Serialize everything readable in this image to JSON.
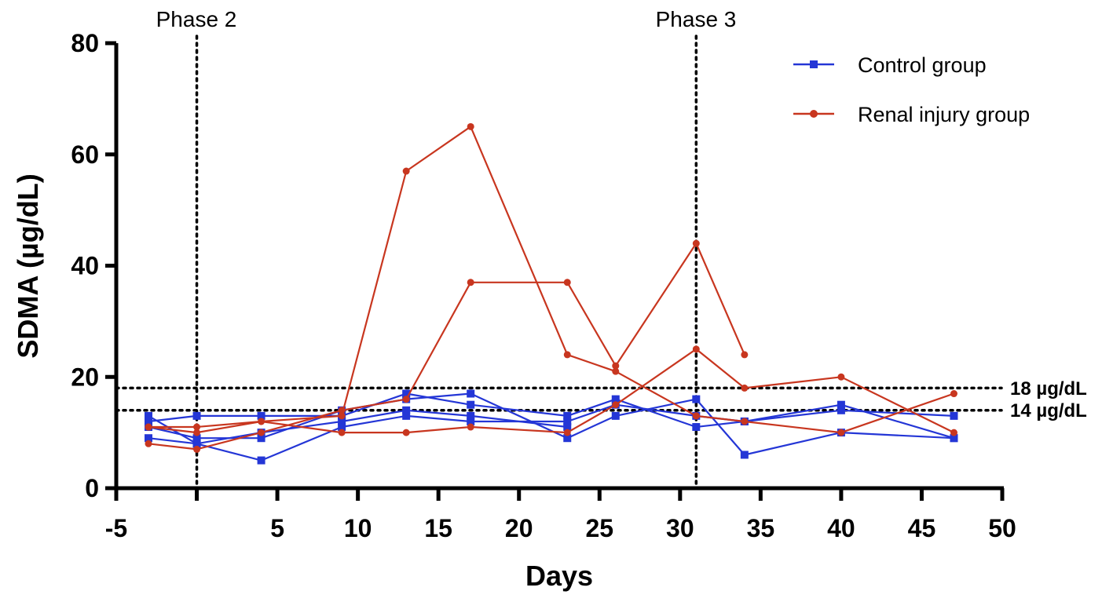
{
  "chart_data": {
    "type": "line",
    "title": "",
    "xlabel": "Days",
    "ylabel": "SDMA (µg/dL)",
    "xlim": [
      -5,
      50
    ],
    "ylim": [
      0,
      80
    ],
    "x_ticks": [
      -5,
      5,
      10,
      15,
      20,
      25,
      30,
      35,
      40,
      45,
      50
    ],
    "y_ticks": [
      0,
      20,
      40,
      60,
      80
    ],
    "vertical_markers": [
      {
        "x": 0,
        "label": "Phase 2"
      },
      {
        "x": 31,
        "label": "Phase 3"
      }
    ],
    "reference_lines": [
      {
        "y": 18,
        "label": "18 µg/dL"
      },
      {
        "y": 14,
        "label": "14 µg/dL"
      }
    ],
    "legend": {
      "position": "top-right",
      "entries": [
        {
          "name": "Control group",
          "color": "#2436d6",
          "marker": "square"
        },
        {
          "name": "Renal injury group",
          "color": "#c8361f",
          "marker": "circle"
        }
      ]
    },
    "series": [
      {
        "name": "Control group",
        "group": "Control group",
        "color": "#2436d6",
        "marker": "square",
        "x": [
          -3,
          0,
          4,
          9,
          13,
          17,
          23,
          26,
          31,
          34,
          40,
          47
        ],
        "y": [
          13,
          8,
          5,
          11,
          13,
          12,
          12,
          15,
          13,
          12,
          14,
          13
        ]
      },
      {
        "name": "Control group",
        "group": "Control group",
        "color": "#2436d6",
        "marker": "square",
        "x": [
          -3,
          0,
          4,
          9,
          13,
          17,
          23,
          26,
          31,
          34,
          40,
          47
        ],
        "y": [
          12,
          13,
          13,
          13,
          17,
          15,
          13,
          16,
          11,
          12,
          15,
          9
        ]
      },
      {
        "name": "Control group",
        "group": "Control group",
        "color": "#2436d6",
        "marker": "square",
        "x": [
          -3,
          0,
          4,
          9,
          13,
          17,
          23,
          26,
          31,
          34,
          40,
          47
        ],
        "y": [
          11,
          9,
          9,
          14,
          16,
          17,
          9,
          13,
          16,
          6,
          10,
          9
        ]
      },
      {
        "name": "Control group",
        "group": "Control group",
        "color": "#2436d6",
        "marker": "square",
        "x": [
          -3,
          0,
          4,
          9,
          13,
          17,
          23
        ],
        "y": [
          9,
          8,
          10,
          12,
          14,
          13,
          11
        ]
      },
      {
        "name": "Renal injury group",
        "group": "Renal injury group",
        "color": "#c8361f",
        "marker": "circle",
        "x": [
          -3,
          0,
          4,
          9,
          13,
          17,
          23,
          26,
          31
        ],
        "y": [
          11,
          10,
          12,
          13,
          57,
          65,
          24,
          21,
          13
        ]
      },
      {
        "name": "Renal injury group",
        "group": "Renal injury group",
        "color": "#c8361f",
        "marker": "circle",
        "x": [
          -3,
          0,
          4,
          9,
          13,
          17,
          23,
          26,
          31,
          34
        ],
        "y": [
          8,
          7,
          10,
          14,
          16,
          37,
          37,
          22,
          44,
          24
        ]
      },
      {
        "name": "Renal injury group",
        "group": "Renal injury group",
        "color": "#c8361f",
        "marker": "circle",
        "x": [
          -3,
          0,
          4,
          9,
          13,
          17,
          23,
          26,
          31,
          34,
          40,
          47
        ],
        "y": [
          11,
          11,
          12,
          10,
          10,
          11,
          10,
          15,
          25,
          18,
          20,
          10
        ]
      },
      {
        "name": "Renal injury group",
        "group": "Renal injury group",
        "color": "#c8361f",
        "marker": "circle",
        "x": [
          31,
          34,
          40,
          47
        ],
        "y": [
          13,
          12,
          10,
          17
        ]
      }
    ]
  }
}
